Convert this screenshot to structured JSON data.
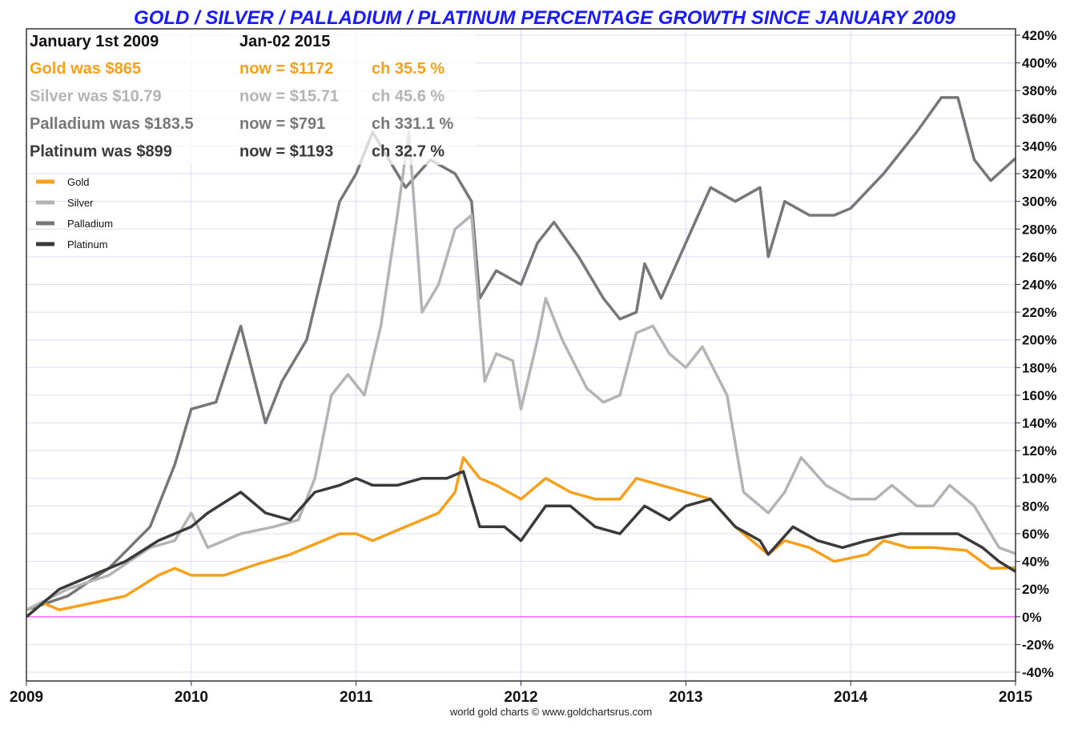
{
  "chart_data": {
    "type": "line",
    "title": "GOLD / SILVER / PALLADIUM / PLATINUM PERCENTAGE GROWTH SINCE JANUARY 2009",
    "xlabel": "",
    "ylabel": "",
    "xlim": [
      2009,
      2015
    ],
    "ylim": [
      -40,
      420
    ],
    "x_ticks": [
      "2009",
      "2010",
      "2011",
      "2012",
      "2013",
      "2014",
      "2015"
    ],
    "y_ticks": [
      "420%",
      "400%",
      "380%",
      "360%",
      "340%",
      "320%",
      "300%",
      "280%",
      "260%",
      "240%",
      "220%",
      "200%",
      "180%",
      "160%",
      "140%",
      "120%",
      "100%",
      "80%",
      "60%",
      "40%",
      "20%",
      "0%",
      "-20%",
      "-40%"
    ],
    "grid": true,
    "legend_placement": "top-left",
    "footer": "world gold charts © www.goldchartsrus.com",
    "info": {
      "start_label": "January 1st 2009",
      "end_label": "Jan-02  2015",
      "rows": [
        {
          "was": "Gold was $865",
          "now": "now = $1172",
          "ch": "ch 35.5 %",
          "color": "#f7a11a"
        },
        {
          "was": "Silver was $10.79",
          "now": "now = $15.71",
          "ch": "ch 45.6 %",
          "color": "#b4b4b4"
        },
        {
          "was": "Palladium was $183.5",
          "now": "now = $791",
          "ch": "ch 331.1 %",
          "color": "#777777"
        },
        {
          "was": "Platinum was $899",
          "now": "now = $1193",
          "ch": "ch 32.7 %",
          "color": "#3a3a3a"
        }
      ]
    },
    "colors": {
      "title": "#1a1aff",
      "zero_line": "#ff66ff",
      "grid": "#dcdcf5"
    },
    "series": [
      {
        "name": "Palladium",
        "color": "#777777",
        "x": [
          2009.0,
          2009.25,
          2009.5,
          2009.75,
          2009.9,
          2010.0,
          2010.15,
          2010.3,
          2010.45,
          2010.55,
          2010.7,
          2010.8,
          2010.9,
          2011.0,
          2011.1,
          2011.2,
          2011.3,
          2011.45,
          2011.6,
          2011.7,
          2011.75,
          2011.85,
          2012.0,
          2012.1,
          2012.2,
          2012.35,
          2012.5,
          2012.6,
          2012.7,
          2012.75,
          2012.85,
          2013.0,
          2013.15,
          2013.3,
          2013.45,
          2013.5,
          2013.6,
          2013.75,
          2013.9,
          2014.0,
          2014.2,
          2014.4,
          2014.55,
          2014.65,
          2014.75,
          2014.85,
          2015.0
        ],
        "y": [
          5,
          15,
          35,
          65,
          110,
          150,
          155,
          210,
          140,
          170,
          200,
          250,
          300,
          320,
          350,
          330,
          310,
          330,
          320,
          300,
          230,
          250,
          240,
          270,
          285,
          260,
          230,
          215,
          220,
          255,
          230,
          270,
          310,
          300,
          310,
          260,
          300,
          290,
          290,
          295,
          320,
          350,
          375,
          375,
          330,
          315,
          331.1
        ]
      },
      {
        "name": "Silver",
        "color": "#b4b4b4",
        "x": [
          2009.0,
          2009.25,
          2009.5,
          2009.75,
          2009.9,
          2010.0,
          2010.1,
          2010.3,
          2010.5,
          2010.65,
          2010.75,
          2010.85,
          2010.95,
          2011.05,
          2011.15,
          2011.25,
          2011.32,
          2011.4,
          2011.5,
          2011.6,
          2011.7,
          2011.78,
          2011.85,
          2011.95,
          2012.0,
          2012.1,
          2012.15,
          2012.25,
          2012.4,
          2012.5,
          2012.6,
          2012.7,
          2012.8,
          2012.9,
          2013.0,
          2013.1,
          2013.25,
          2013.35,
          2013.5,
          2013.6,
          2013.7,
          2013.85,
          2014.0,
          2014.15,
          2014.25,
          2014.4,
          2014.5,
          2014.6,
          2014.75,
          2014.9,
          2015.0
        ],
        "y": [
          5,
          20,
          30,
          50,
          55,
          75,
          50,
          60,
          65,
          70,
          100,
          160,
          175,
          160,
          210,
          290,
          350,
          220,
          240,
          280,
          290,
          170,
          190,
          185,
          150,
          200,
          230,
          200,
          165,
          155,
          160,
          205,
          210,
          190,
          180,
          195,
          160,
          90,
          75,
          90,
          115,
          95,
          85,
          85,
          95,
          80,
          80,
          95,
          80,
          50,
          45.6
        ]
      },
      {
        "name": "Gold",
        "color": "#f7a11a",
        "x": [
          2009.0,
          2009.1,
          2009.2,
          2009.4,
          2009.6,
          2009.8,
          2009.9,
          2010.0,
          2010.2,
          2010.4,
          2010.6,
          2010.8,
          2010.9,
          2011.0,
          2011.1,
          2011.3,
          2011.5,
          2011.6,
          2011.65,
          2011.75,
          2011.85,
          2012.0,
          2012.15,
          2012.3,
          2012.45,
          2012.6,
          2012.7,
          2012.85,
          2013.0,
          2013.15,
          2013.3,
          2013.5,
          2013.6,
          2013.75,
          2013.9,
          2014.1,
          2014.2,
          2014.35,
          2014.5,
          2014.7,
          2014.85,
          2015.0
        ],
        "y": [
          0,
          10,
          5,
          10,
          15,
          30,
          35,
          30,
          30,
          38,
          45,
          55,
          60,
          60,
          55,
          65,
          75,
          90,
          115,
          100,
          95,
          85,
          100,
          90,
          85,
          85,
          100,
          95,
          90,
          85,
          65,
          45,
          55,
          50,
          40,
          45,
          55,
          50,
          50,
          48,
          35,
          35.5
        ]
      },
      {
        "name": "Platinum",
        "color": "#3a3a3a",
        "x": [
          2009.0,
          2009.2,
          2009.4,
          2009.6,
          2009.8,
          2010.0,
          2010.1,
          2010.3,
          2010.45,
          2010.6,
          2010.75,
          2010.9,
          2011.0,
          2011.1,
          2011.25,
          2011.4,
          2011.55,
          2011.65,
          2011.75,
          2011.9,
          2012.0,
          2012.15,
          2012.3,
          2012.45,
          2012.6,
          2012.75,
          2012.9,
          2013.0,
          2013.15,
          2013.3,
          2013.45,
          2013.5,
          2013.65,
          2013.8,
          2013.95,
          2014.1,
          2014.3,
          2014.5,
          2014.65,
          2014.8,
          2014.9,
          2015.0
        ],
        "y": [
          0,
          20,
          30,
          40,
          55,
          65,
          75,
          90,
          75,
          70,
          90,
          95,
          100,
          95,
          95,
          100,
          100,
          105,
          65,
          65,
          55,
          80,
          80,
          65,
          60,
          80,
          70,
          80,
          85,
          65,
          55,
          45,
          65,
          55,
          50,
          55,
          60,
          60,
          60,
          50,
          40,
          32.7
        ]
      }
    ],
    "legend": [
      "Gold",
      "Silver",
      "Palladium",
      "Platinum"
    ]
  }
}
